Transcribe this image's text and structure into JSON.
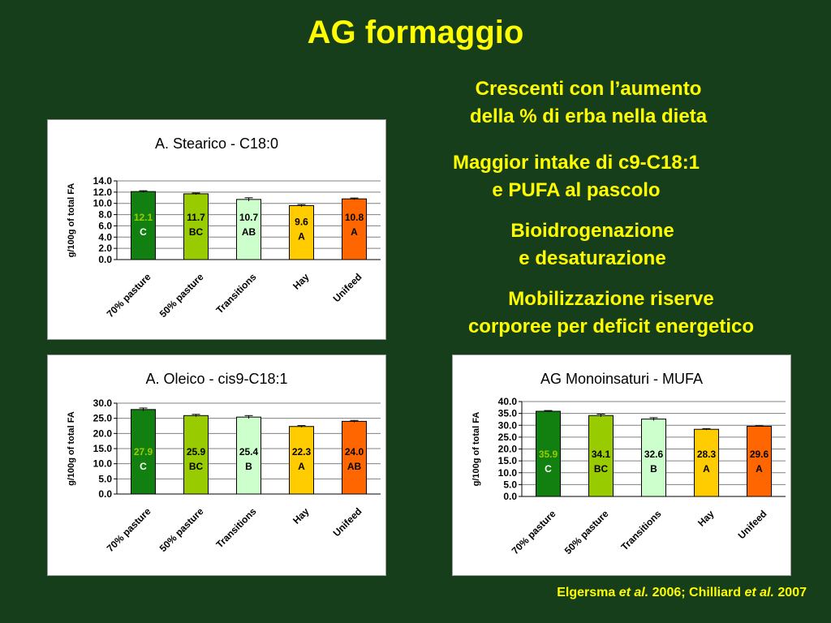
{
  "title": "AG formaggio",
  "notes": [
    {
      "lines": [
        "Crescenti con l’aumento",
        "della % di erba nella dieta"
      ]
    },
    {
      "lines": [
        "Maggior intake di c9-C18:1",
        "e PUFA al pascolo"
      ]
    },
    {
      "lines": [
        "Bioidrogenazione",
        "e desaturazione"
      ]
    },
    {
      "lines": [
        "Mobilizzazione riserve",
        "corporee per deficit energetico"
      ]
    }
  ],
  "citation": {
    "author1": "Elgersma",
    "etal1": "et al.",
    "year1": "2006;",
    "author2": "Chilliard",
    "etal2": "et al.",
    "year2": "2007"
  },
  "colors": {
    "background": "#173e1a",
    "text_accent": "#ffff00",
    "bars": [
      "#118011",
      "#99cc00",
      "#ccffcc",
      "#ffcc00",
      "#ff6600"
    ]
  },
  "chart_data": [
    {
      "type": "bar",
      "title": "A. Stearico - C18:0",
      "ylabel": "g/100g of total FA",
      "categories": [
        "70% pasture",
        "50% pasture",
        "Transitions",
        "Hay",
        "Unifeed"
      ],
      "values": [
        12.1,
        11.7,
        10.7,
        9.6,
        10.8
      ],
      "errors": [
        0.15,
        0.15,
        0.3,
        0.2,
        0.15
      ],
      "value_labels": [
        "12.1",
        "11.7",
        "10.7",
        "9.6",
        "10.8"
      ],
      "letters": [
        "C",
        "BC",
        "AB",
        "A",
        "A"
      ],
      "ylim": [
        0,
        14
      ],
      "yticks": [
        "0.0",
        "2.0",
        "4.0",
        "6.0",
        "8.0",
        "10.0",
        "12.0",
        "14.0"
      ],
      "grid": true,
      "legend": "none"
    },
    {
      "type": "bar",
      "title": "A. Oleico - cis9-C18:1",
      "ylabel": "g/100g of total FA",
      "categories": [
        "70% pasture",
        "50% pasture",
        "Transitions",
        "Hay",
        "Unifeed"
      ],
      "values": [
        27.9,
        25.9,
        25.4,
        22.3,
        24.0
      ],
      "errors": [
        0.5,
        0.4,
        0.5,
        0.3,
        0.3
      ],
      "value_labels": [
        "27.9",
        "25.9",
        "25.4",
        "22.3",
        "24.0"
      ],
      "letters": [
        "C",
        "BC",
        "B",
        "A",
        "AB"
      ],
      "ylim": [
        0,
        30
      ],
      "yticks": [
        "0.0",
        "5.0",
        "10.0",
        "15.0",
        "20.0",
        "25.0",
        "30.0"
      ],
      "grid": true,
      "legend": "none"
    },
    {
      "type": "bar",
      "title": "AG Monoinsaturi - MUFA",
      "ylabel": "g/100g of total FA",
      "categories": [
        "70% pasture",
        "50% pasture",
        "Transitions",
        "Hay",
        "Unifeed"
      ],
      "values": [
        35.9,
        34.1,
        32.6,
        28.3,
        29.6
      ],
      "errors": [
        0.3,
        0.6,
        0.6,
        0.3,
        0.2
      ],
      "value_labels": [
        "35.9",
        "34.1",
        "32.6",
        "28.3",
        "29.6"
      ],
      "letters": [
        "C",
        "BC",
        "B",
        "A",
        "A"
      ],
      "ylim": [
        0,
        40
      ],
      "yticks": [
        "0.0",
        "5.0",
        "10.0",
        "15.0",
        "20.0",
        "25.0",
        "30.0",
        "35.0",
        "40.0"
      ],
      "grid": true,
      "legend": "none"
    }
  ]
}
